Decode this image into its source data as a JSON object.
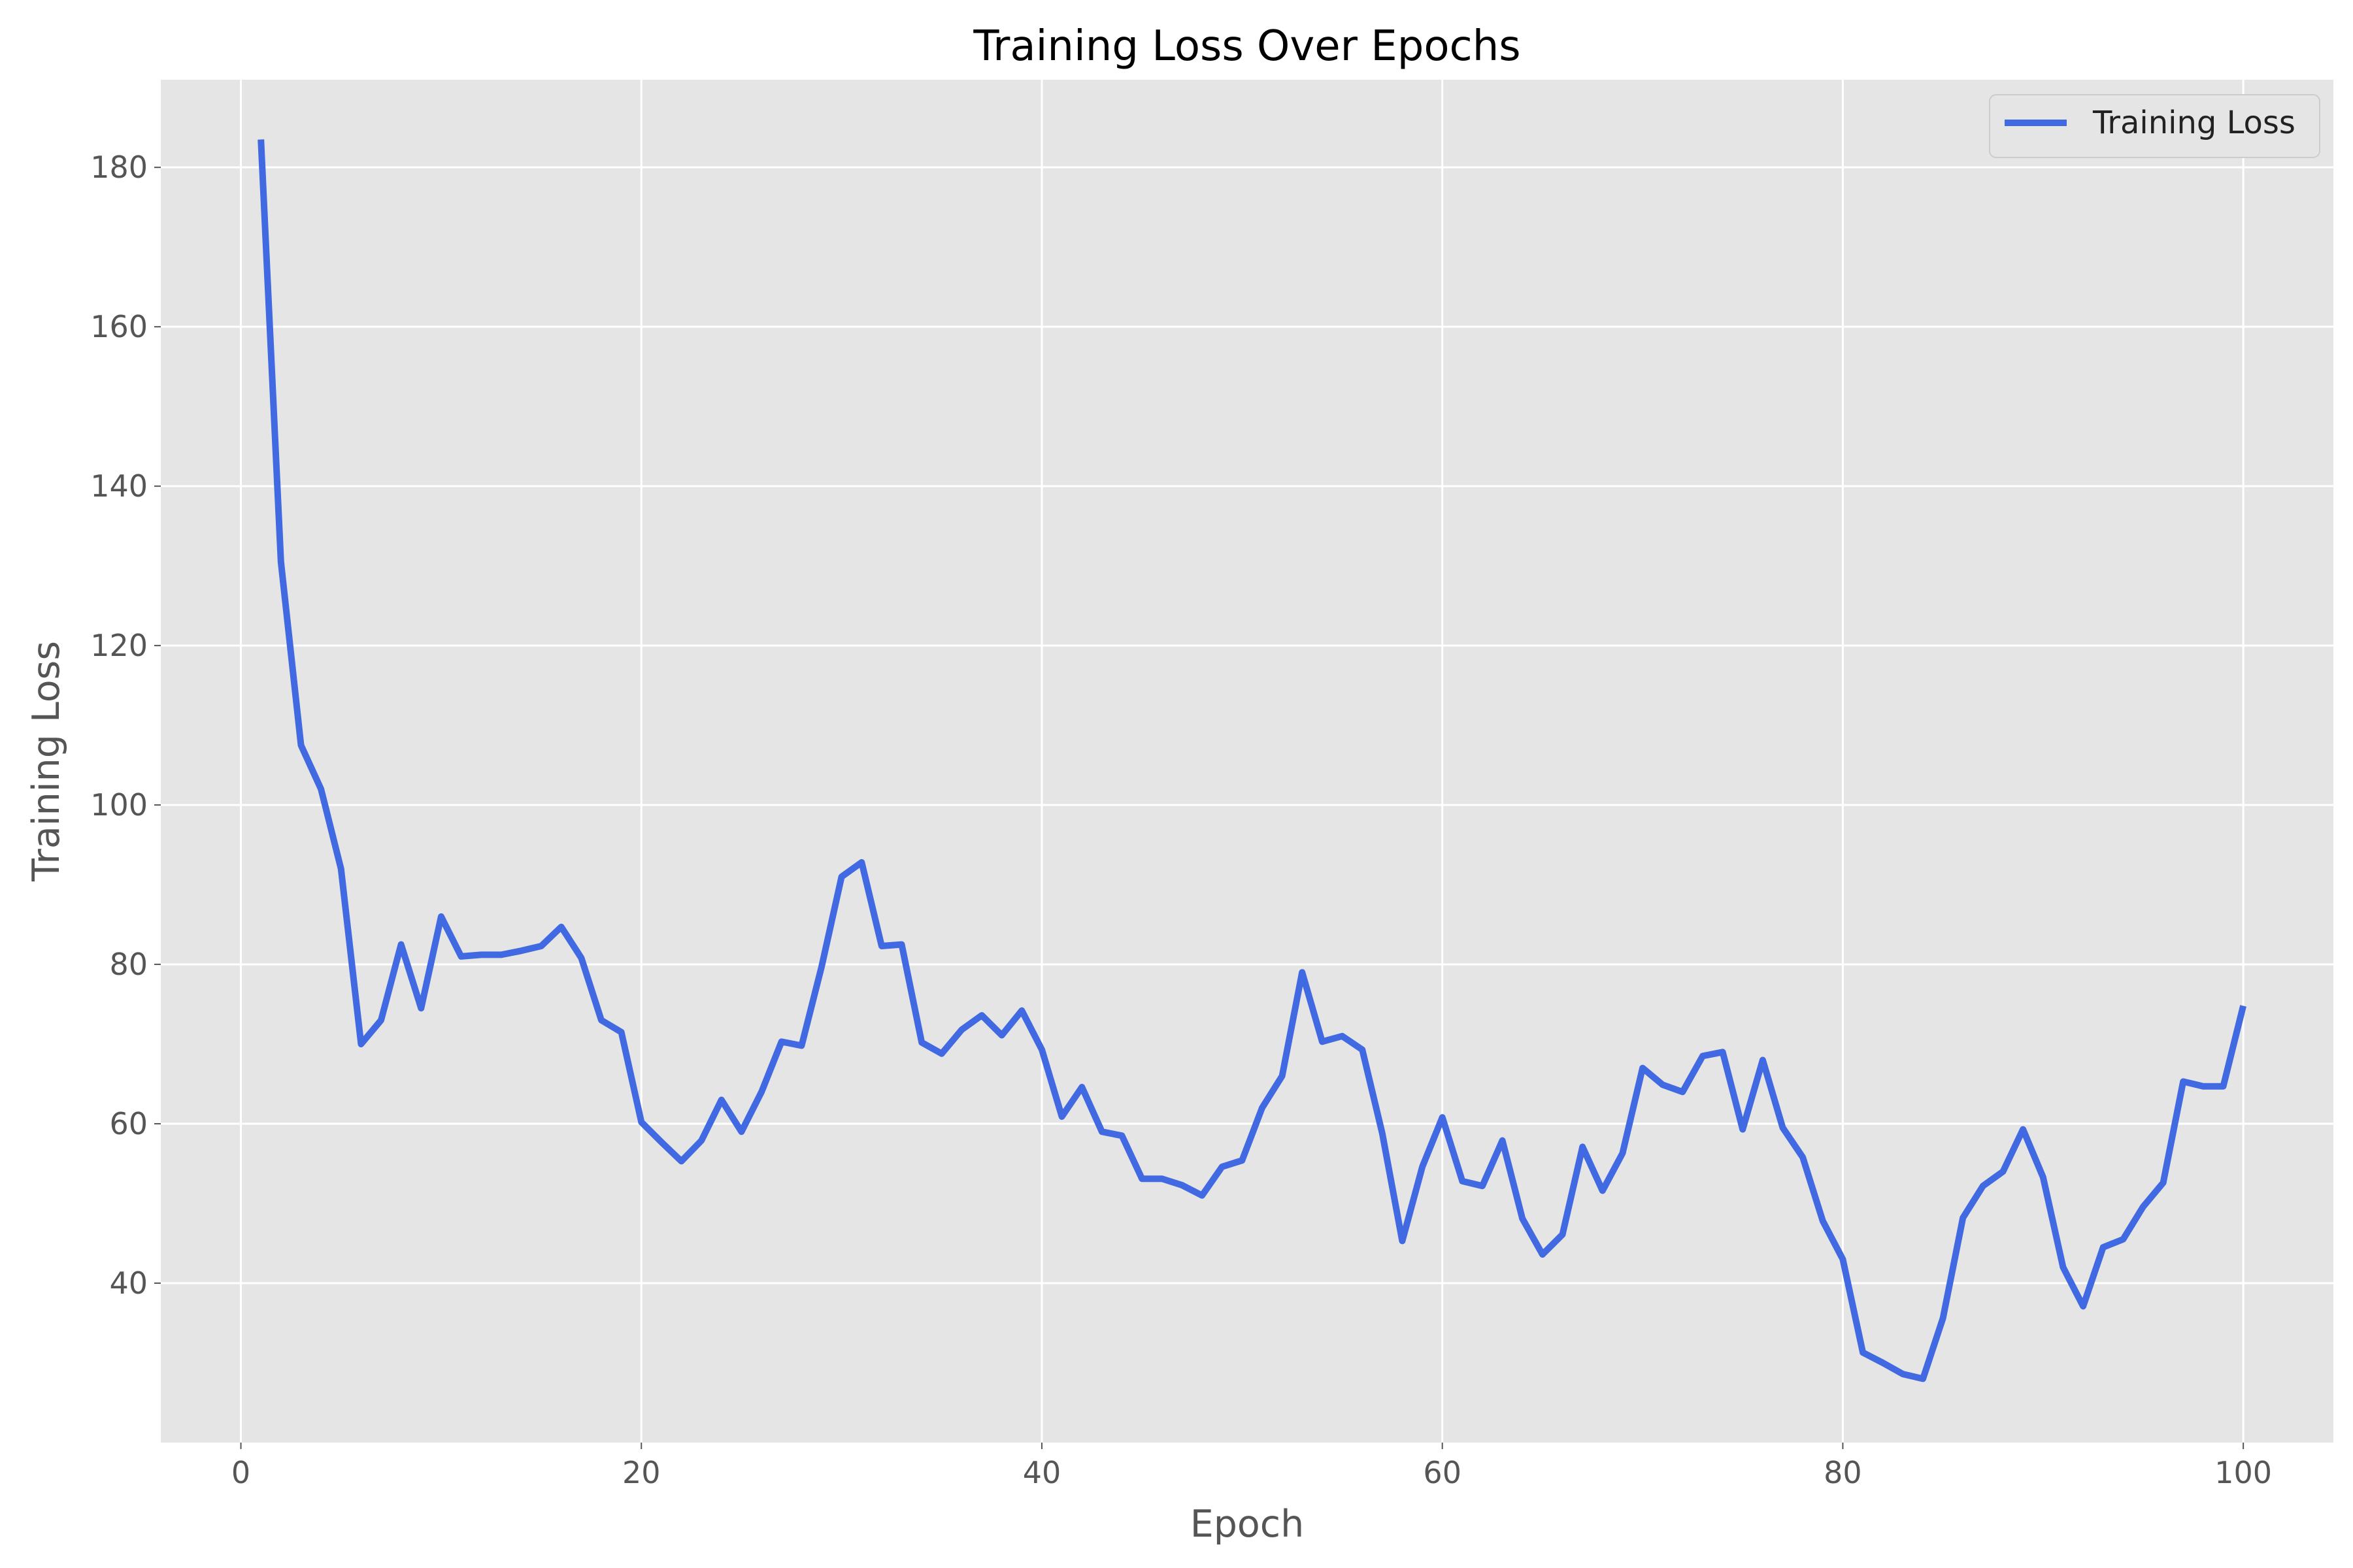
{
  "chart_data": {
    "type": "line",
    "title": "Training Loss Over Epochs",
    "xlabel": "Epoch",
    "ylabel": "Training Loss",
    "xlim": [
      -4,
      104.5
    ],
    "ylim": [
      20,
      191
    ],
    "xticks": [
      0,
      20,
      40,
      60,
      80,
      100
    ],
    "yticks": [
      40,
      60,
      80,
      100,
      120,
      140,
      160,
      180
    ],
    "grid": true,
    "legend_position": "top-right",
    "colors": {
      "background": "#E5E5E5",
      "grid": "#FFFFFF",
      "series": "#4169E1"
    },
    "series": [
      {
        "name": "Training Loss",
        "x": [
          1,
          2,
          3,
          4,
          5,
          6,
          7,
          8,
          9,
          10,
          11,
          12,
          13,
          14,
          15,
          16,
          17,
          18,
          19,
          20,
          21,
          22,
          23,
          24,
          25,
          26,
          27,
          28,
          29,
          30,
          31,
          32,
          33,
          34,
          35,
          36,
          37,
          38,
          39,
          40,
          41,
          42,
          43,
          44,
          45,
          46,
          47,
          48,
          49,
          50,
          51,
          52,
          53,
          54,
          55,
          56,
          57,
          58,
          59,
          60,
          61,
          62,
          63,
          64,
          65,
          66,
          67,
          68,
          69,
          70,
          71,
          72,
          73,
          74,
          75,
          76,
          77,
          78,
          79,
          80,
          81,
          82,
          83,
          84,
          85,
          86,
          87,
          88,
          89,
          90,
          91,
          92,
          93,
          94,
          95,
          96,
          97,
          98,
          99,
          100
        ],
        "y": [
          183.5,
          130.5,
          107.5,
          102,
          92,
          70,
          73,
          82.5,
          74.5,
          86,
          81,
          81.2,
          81.2,
          81.7,
          82.3,
          84.7,
          80.8,
          73,
          71.5,
          60.2,
          57.7,
          55.3,
          57.9,
          63,
          59,
          64,
          70.3,
          69.8,
          79.7,
          91,
          92.8,
          82.3,
          82.5,
          70.2,
          68.8,
          71.8,
          73.6,
          71.1,
          74.2,
          69.3,
          60.9,
          64.6,
          59,
          58.5,
          53.1,
          53.1,
          52.3,
          51,
          54.6,
          55.4,
          62,
          66,
          79,
          70.3,
          71,
          69.3,
          58.8,
          45.3,
          54.6,
          60.8,
          52.8,
          52.2,
          57.9,
          48.1,
          43.6,
          46.1,
          57.1,
          51.6,
          56.3,
          67,
          64.9,
          64,
          68.5,
          69,
          59.3,
          68,
          59.5,
          55.8,
          47.8,
          43,
          31.3,
          30,
          28.6,
          28,
          35.6,
          48.2,
          52.2,
          54,
          59.3,
          53.3,
          42,
          37.1,
          44.5,
          45.5,
          49.6,
          52.6,
          65.3,
          64.7,
          64.7,
          74.8
        ]
      }
    ]
  }
}
